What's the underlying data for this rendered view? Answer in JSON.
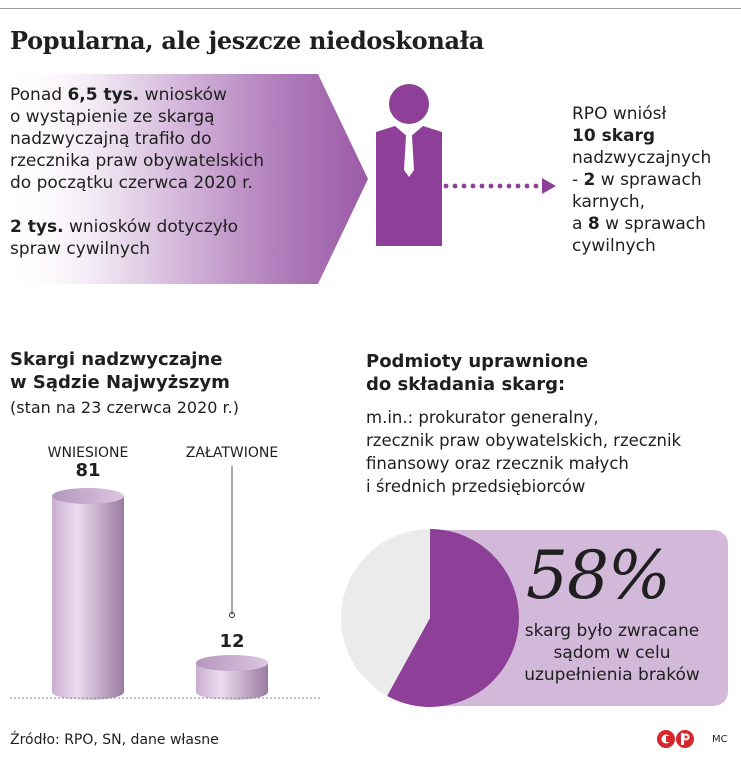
{
  "title": "Popularna, ale jeszcze niedoskonała",
  "intro": {
    "l1_pre": "Ponad ",
    "l1_bold": "6,5 tys.",
    "l1_post": " wniosków",
    "l2": "o wystąpienie ze skargą",
    "l3": "nadzwyczajną trafiło do",
    "l4": "rzecznika praw obywatelskich",
    "l5": "do początku czerwca 2020 r.",
    "l6_bold": "2 tys.",
    "l6_post": " wniosków dotyczyło",
    "l7": "spraw cywilnych"
  },
  "rpo": {
    "l1": "RPO wniósł",
    "l2_bold": "10 skarg",
    "l3": "nadzwyczajnych",
    "l4_pre": "- ",
    "l4_bold": "2",
    "l4_post": " w sprawach",
    "l5": "karnych,",
    "l6_pre": "a ",
    "l6_bold": "8",
    "l6_post": " w sprawach",
    "l7": "cywilnych"
  },
  "sn": {
    "title_l1": "Skargi nadzwyczajne",
    "title_l2": "w Sądzie Najwyższym",
    "subtitle": "(stan na 23 czerwca 2020 r.)"
  },
  "podmioty": {
    "title_l1": "Podmioty uprawnione",
    "title_l2": "do składania skarg:",
    "l1": "m.in.: prokurator generalny,",
    "l2": "rzecznik praw obywatelskich, rzecznik",
    "l3": "finansowy oraz rzecznik małych",
    "l4": "i średnich przedsiębiorców"
  },
  "pie_text": {
    "pct": "58%",
    "l1": "skarg było zwracane",
    "l2": "sądom w celu",
    "l3": "uzupełnienia braków"
  },
  "source": "Źródło: RPO, SN, dane własne",
  "credit": "MC",
  "colors": {
    "purple": "#8e3f97",
    "lavender": "#d3b9d9",
    "cylinder_light": "#ecdcef",
    "cylinder_dark": "#a082a8",
    "pie_rest": "#ebebeb"
  },
  "chart_data": [
    {
      "type": "bar",
      "categories": [
        "WNIESIONE",
        "ZAŁATWIONE"
      ],
      "values": [
        81,
        12
      ],
      "value_labels": [
        "81",
        "12"
      ]
    },
    {
      "type": "pie",
      "values": [
        58,
        42
      ],
      "highlight_label": "58%"
    }
  ]
}
